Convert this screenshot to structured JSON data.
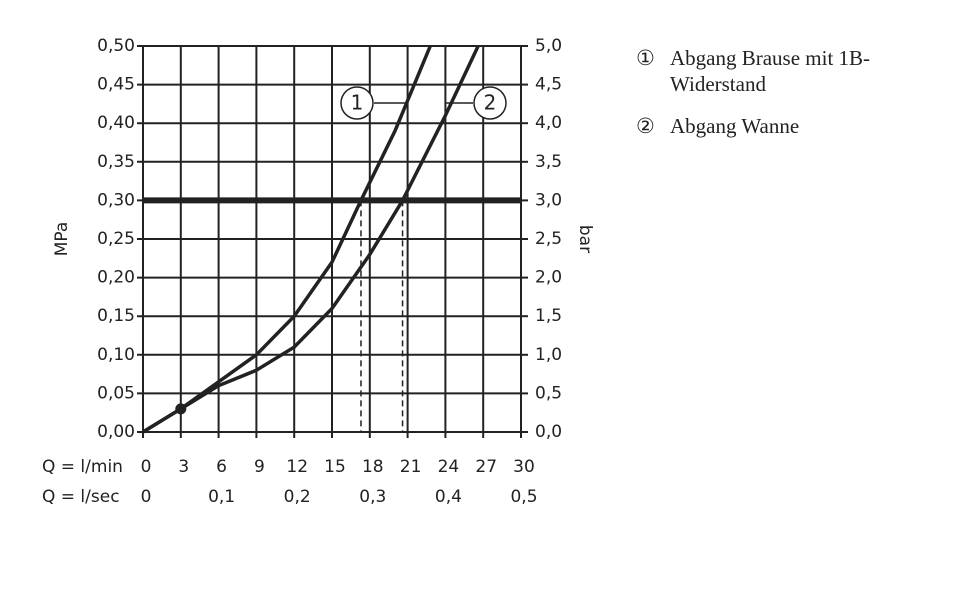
{
  "chart_data": {
    "type": "line",
    "ylabel": "MPa",
    "y2label": "bar",
    "xlabel": "Q = l/min",
    "x2label": "Q = l/sec",
    "xlim": [
      0,
      30
    ],
    "xticks": [
      0,
      3,
      6,
      9,
      12,
      15,
      18,
      21,
      24,
      27,
      30
    ],
    "x2lim": [
      0,
      0.5
    ],
    "x2ticks": [
      0,
      {
        "value": 0.1,
        "label": "0,1"
      },
      {
        "value": 0.2,
        "label": "0,2"
      },
      {
        "value": 0.3,
        "label": "0,3"
      },
      {
        "value": 0.4,
        "label": "0,4"
      },
      {
        "value": 0.5,
        "label": "0,5"
      }
    ],
    "ylim": [
      0,
      0.5
    ],
    "yticks": [
      {
        "value": 0,
        "label": "0,00"
      },
      {
        "value": 0.05,
        "label": "0,05"
      },
      {
        "value": 0.1,
        "label": "0,10"
      },
      {
        "value": 0.15,
        "label": "0,15"
      },
      {
        "value": 0.2,
        "label": "0,20"
      },
      {
        "value": 0.25,
        "label": "0,25"
      },
      {
        "value": 0.3,
        "label": "0,30"
      },
      {
        "value": 0.35,
        "label": "0,35"
      },
      {
        "value": 0.4,
        "label": "0,40"
      },
      {
        "value": 0.45,
        "label": "0,45"
      },
      {
        "value": 0.5,
        "label": "0,50"
      }
    ],
    "y2lim": [
      0,
      5
    ],
    "y2ticks": [
      {
        "value": 0,
        "label": "0,0"
      },
      {
        "value": 0.5,
        "label": "0,5"
      },
      {
        "value": 1,
        "label": "1,0"
      },
      {
        "value": 1.5,
        "label": "1,5"
      },
      {
        "value": 2,
        "label": "2,0"
      },
      {
        "value": 2.5,
        "label": "2,5"
      },
      {
        "value": 3,
        "label": "3,0"
      },
      {
        "value": 3.5,
        "label": "3,5"
      },
      {
        "value": 4,
        "label": "4,0"
      },
      {
        "value": 4.5,
        "label": "4,5"
      },
      {
        "value": 5,
        "label": "5,0"
      }
    ],
    "grid": true,
    "color": "#222222",
    "reference_y": 0.3,
    "drop_lines": [
      17.3,
      20.6
    ],
    "highlight_point": {
      "x": 3,
      "y": 0.03
    },
    "series": [
      {
        "name": "Abgang Brause mit 1B-Widerstand",
        "marker": "①",
        "label": "1",
        "color": "#222222",
        "x": [
          0,
          3,
          6,
          9,
          12,
          15,
          17.3,
          20,
          22.8
        ],
        "values": [
          0,
          0.03,
          0.065,
          0.1,
          0.15,
          0.22,
          0.3,
          0.39,
          0.5
        ]
      },
      {
        "name": "Abgang Wanne",
        "marker": "②",
        "label": "2",
        "color": "#222222",
        "x": [
          0,
          3,
          6,
          9,
          12,
          15,
          18,
          20.6,
          24,
          26.6
        ],
        "values": [
          0,
          0.03,
          0.06,
          0.08,
          0.11,
          0.16,
          0.23,
          0.3,
          0.41,
          0.5
        ]
      }
    ]
  }
}
